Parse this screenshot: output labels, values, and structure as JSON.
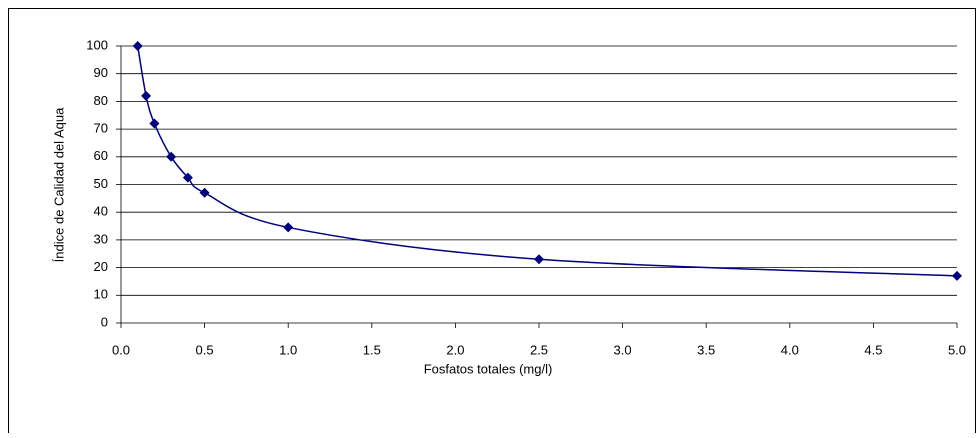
{
  "chart_data": {
    "type": "scatter",
    "x_label": "Fosfatos totales (mg/l)",
    "y_label": "Índice de  Calidad del Aqua",
    "series": [
      {
        "color": "#000080",
        "x": [
          0.1,
          0.15,
          0.2,
          0.3,
          0.4,
          0.5,
          1.0,
          2.5,
          5.0
        ],
        "values": [
          100,
          82,
          72,
          60,
          52.5,
          47,
          34.5,
          23,
          17
        ]
      }
    ],
    "xlim": [
      0,
      5
    ],
    "xticks": [
      {
        "value": 0,
        "label": "0.0"
      },
      {
        "value": 0.5,
        "label": "0.5"
      },
      {
        "value": 1,
        "label": "1.0"
      },
      {
        "value": 1.5,
        "label": "1.5"
      },
      {
        "value": 2,
        "label": "2.0"
      },
      {
        "value": 2.5,
        "label": "2.5"
      },
      {
        "value": 3,
        "label": "3.0"
      },
      {
        "value": 3.5,
        "label": "3.5"
      },
      {
        "value": 4,
        "label": "4.0"
      },
      {
        "value": 4.5,
        "label": "4.5"
      },
      {
        "value": 5,
        "label": "5.0"
      }
    ],
    "ylim": [
      0,
      100
    ],
    "yticks": [
      0,
      10,
      20,
      30,
      40,
      50,
      60,
      70,
      80,
      90,
      100
    ],
    "grid": true,
    "smooth": true
  }
}
